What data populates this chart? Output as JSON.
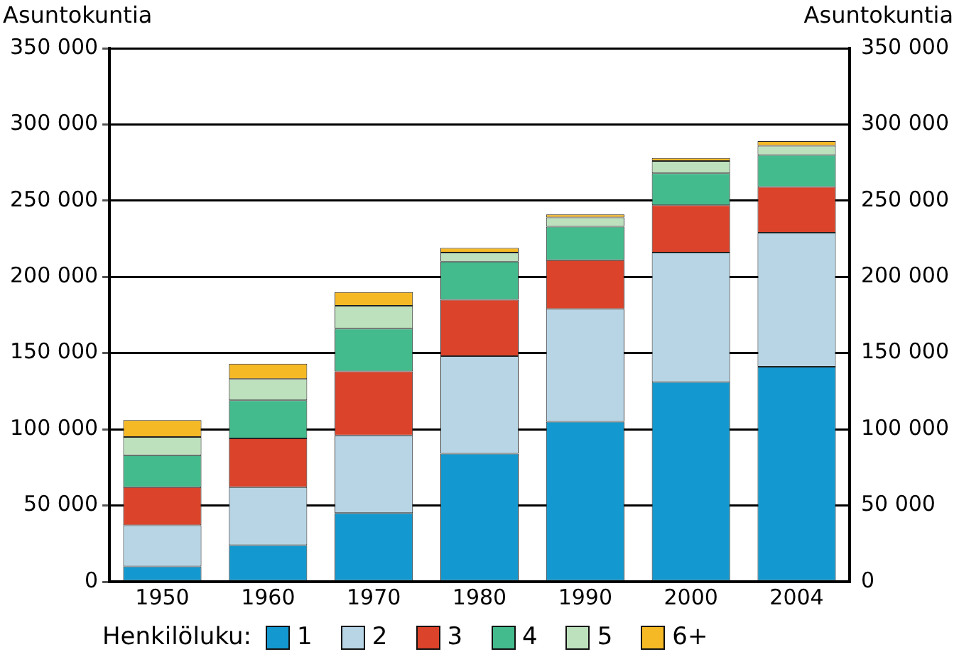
{
  "chart_data": {
    "type": "bar",
    "stacked": true,
    "categories": [
      "1950",
      "1960",
      "1970",
      "1980",
      "1990",
      "2000",
      "2004"
    ],
    "ylabel": "Asuntokuntia",
    "y2label": "Asuntokuntia",
    "legend_title": "Henkilöluku:",
    "ylim": [
      0,
      350000
    ],
    "yticks": [
      {
        "value": 0,
        "label": "0"
      },
      {
        "value": 50000,
        "label": "50 000"
      },
      {
        "value": 100000,
        "label": "100 000"
      },
      {
        "value": 150000,
        "label": "150 000"
      },
      {
        "value": 200000,
        "label": "200 000"
      },
      {
        "value": 250000,
        "label": "250 000"
      },
      {
        "value": 300000,
        "label": "300 000"
      },
      {
        "value": 350000,
        "label": "350 000"
      }
    ],
    "y2lim": [
      0,
      350000
    ],
    "y2ticks": [
      {
        "value": 0,
        "label": "0"
      },
      {
        "value": 50000,
        "label": "50 000"
      },
      {
        "value": 100000,
        "label": "100 000"
      },
      {
        "value": 150000,
        "label": "150 000"
      },
      {
        "value": 200000,
        "label": "200 000"
      },
      {
        "value": 250000,
        "label": "250 000"
      },
      {
        "value": 300000,
        "label": "300 000"
      },
      {
        "value": 350000,
        "label": "350 000"
      }
    ],
    "grid": "y",
    "legend": "bottom",
    "series": [
      {
        "name": "1",
        "color": "#1399cf",
        "values": [
          10000,
          24000,
          45000,
          84000,
          105000,
          131000,
          141000
        ]
      },
      {
        "name": "2",
        "color": "#b7d5e5",
        "values": [
          27000,
          38000,
          51000,
          64000,
          74000,
          85000,
          88000
        ]
      },
      {
        "name": "3",
        "color": "#db432a",
        "values": [
          25000,
          32000,
          42000,
          37000,
          32000,
          31000,
          30000
        ]
      },
      {
        "name": "4",
        "color": "#44bb8c",
        "values": [
          21000,
          25000,
          28000,
          25000,
          22000,
          21000,
          21000
        ]
      },
      {
        "name": "5",
        "color": "#bde0bd",
        "values": [
          12000,
          14000,
          15000,
          6000,
          6000,
          8000,
          6000
        ]
      },
      {
        "name": "6+",
        "color": "#f6b926",
        "values": [
          11000,
          10000,
          9000,
          3000,
          2000,
          2000,
          3000
        ]
      }
    ]
  }
}
